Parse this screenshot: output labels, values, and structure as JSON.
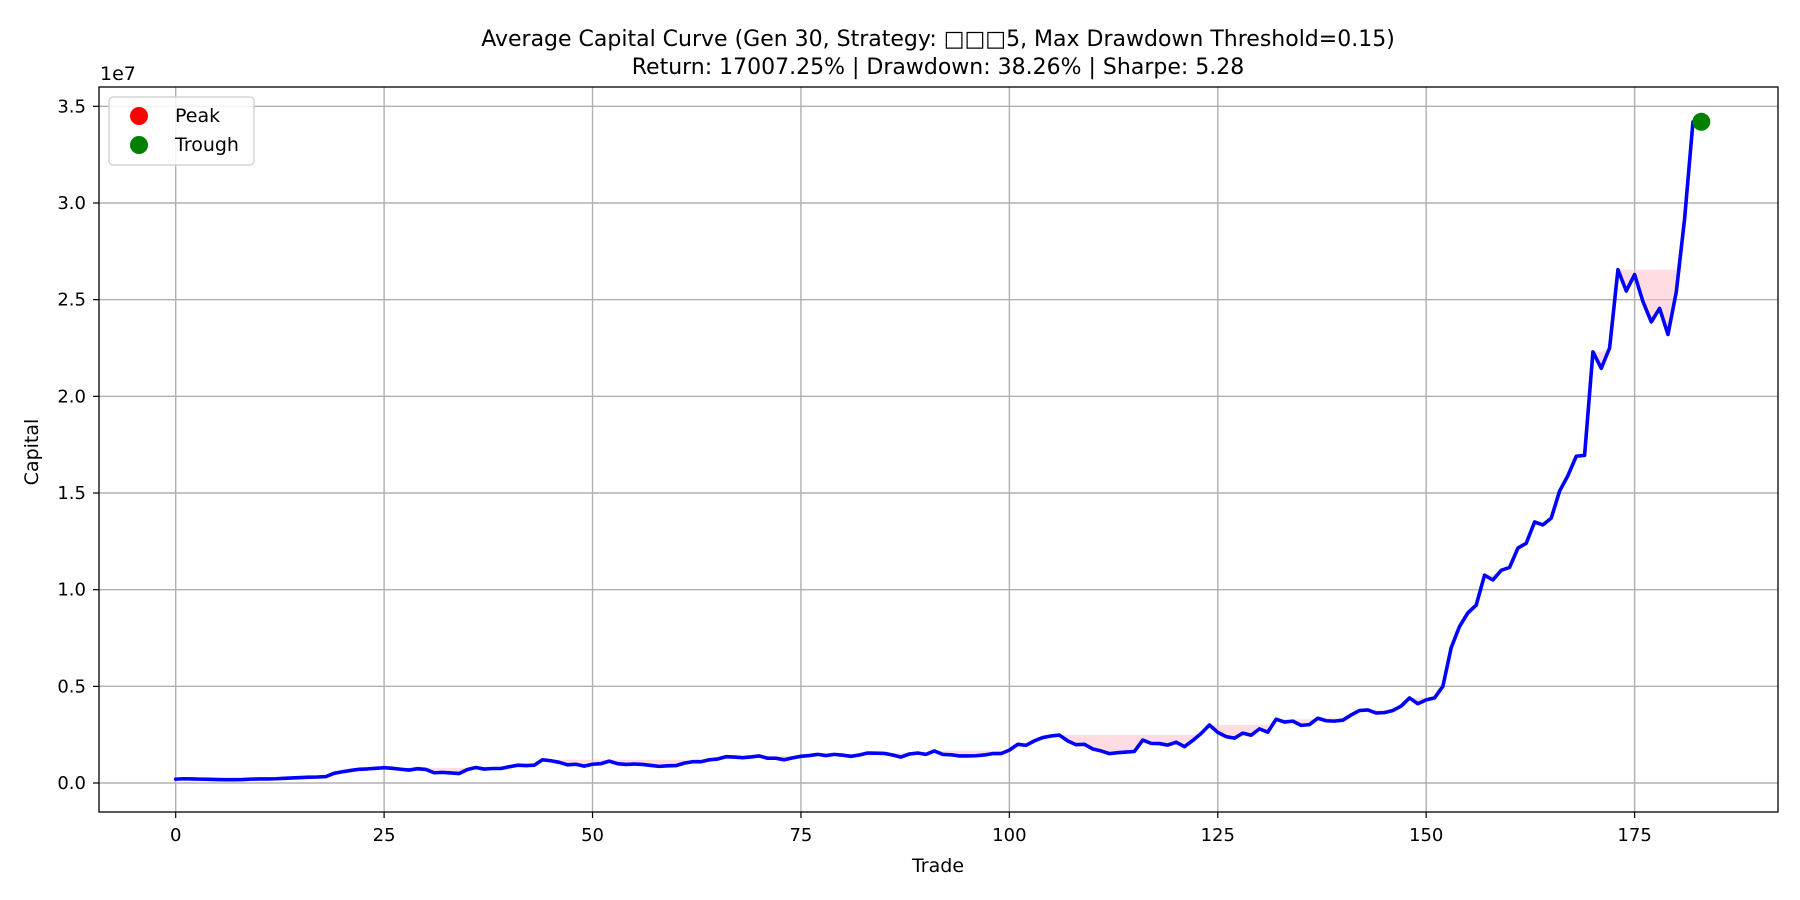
{
  "chart_data": {
    "type": "line",
    "title": "Average Capital Curve (Gen 30, Strategy: □□□5, Max Drawdown Threshold=0.15)",
    "subtitle": "Return: 17007.25% | Drawdown: 38.26% | Sharpe: 5.28",
    "xlabel": "Trade",
    "ylabel": "Capital",
    "y_offset_label": "1e7",
    "xlim": [
      -9.2,
      192.2
    ],
    "ylim": [
      -0.15,
      3.6
    ],
    "y_scale": 10000000,
    "x_ticks": [
      0,
      25,
      50,
      75,
      100,
      125,
      150,
      175
    ],
    "y_ticks": [
      0.0,
      0.5,
      1.0,
      1.5,
      2.0,
      2.5,
      3.0,
      3.5
    ],
    "y_tick_labels": [
      "0.0",
      "0.5",
      "1.0",
      "1.5",
      "2.0",
      "2.5",
      "3.0",
      "3.5"
    ],
    "grid": true,
    "legend_position": "upper-left",
    "legend": [
      {
        "label": "Peak",
        "color": "#ff0000"
      },
      {
        "label": "Trough",
        "color": "#008000"
      }
    ],
    "series": [
      {
        "line_color": "#0000ff",
        "x_start": 0,
        "y": [
          0.02,
          0.022,
          0.021,
          0.02,
          0.019,
          0.018,
          0.017,
          0.017,
          0.018,
          0.02,
          0.021,
          0.021,
          0.022,
          0.024,
          0.026,
          0.028,
          0.03,
          0.031,
          0.033,
          0.05,
          0.058,
          0.065,
          0.071,
          0.073,
          0.076,
          0.079,
          0.076,
          0.071,
          0.067,
          0.074,
          0.07,
          0.053,
          0.055,
          0.052,
          0.049,
          0.07,
          0.08,
          0.072,
          0.075,
          0.075,
          0.084,
          0.092,
          0.09,
          0.092,
          0.12,
          0.115,
          0.107,
          0.094,
          0.097,
          0.087,
          0.097,
          0.1,
          0.113,
          0.1,
          0.096,
          0.098,
          0.096,
          0.091,
          0.086,
          0.089,
          0.09,
          0.103,
          0.11,
          0.11,
          0.12,
          0.124,
          0.136,
          0.134,
          0.131,
          0.135,
          0.14,
          0.128,
          0.128,
          0.12,
          0.13,
          0.138,
          0.142,
          0.148,
          0.142,
          0.148,
          0.144,
          0.138,
          0.145,
          0.155,
          0.154,
          0.153,
          0.145,
          0.134,
          0.15,
          0.155,
          0.148,
          0.166,
          0.148,
          0.146,
          0.14,
          0.14,
          0.141,
          0.145,
          0.152,
          0.152,
          0.17,
          0.2,
          0.195,
          0.218,
          0.235,
          0.243,
          0.248,
          0.218,
          0.198,
          0.2,
          0.176,
          0.166,
          0.152,
          0.157,
          0.16,
          0.163,
          0.222,
          0.205,
          0.204,
          0.196,
          0.211,
          0.188,
          0.22,
          0.256,
          0.3,
          0.262,
          0.24,
          0.232,
          0.258,
          0.247,
          0.28,
          0.263,
          0.33,
          0.315,
          0.32,
          0.298,
          0.302,
          0.335,
          0.322,
          0.32,
          0.325,
          0.352,
          0.375,
          0.378,
          0.362,
          0.364,
          0.375,
          0.398,
          0.44,
          0.41,
          0.43,
          0.44,
          0.5,
          0.7,
          0.81,
          0.88,
          0.92,
          1.075,
          1.05,
          1.1,
          1.115,
          1.215,
          1.24,
          1.35,
          1.335,
          1.37,
          1.51,
          1.59,
          1.69,
          1.695,
          2.23,
          2.145,
          2.25,
          2.655,
          2.545,
          2.63,
          2.49,
          2.385,
          2.455,
          2.32,
          2.54,
          2.92,
          3.42,
          3.42
        ]
      }
    ],
    "drawdown_fill_color": "#ffc0cb",
    "drawdown_fill_opacity": 0.55,
    "trough_marker": {
      "x": 183,
      "y": 3.42,
      "color": "#008000"
    }
  }
}
